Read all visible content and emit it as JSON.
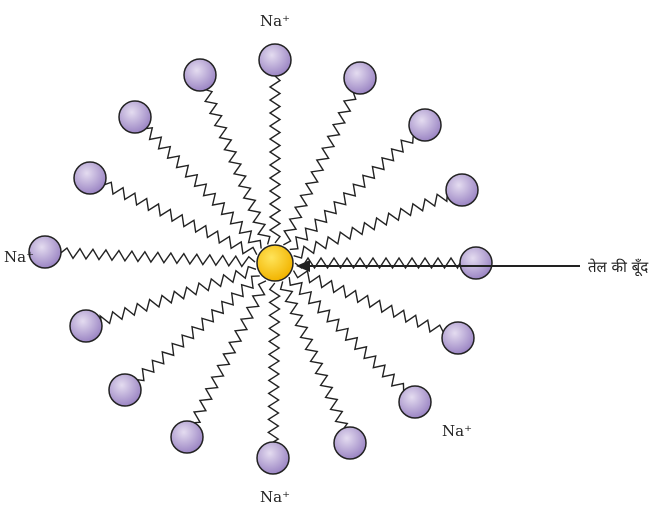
{
  "labels": {
    "top": "Na⁺",
    "left": "Na⁺",
    "lower_right": "Na⁺",
    "bottom": "Na⁺",
    "oil_drop": "तेल की बूँद"
  }
}
